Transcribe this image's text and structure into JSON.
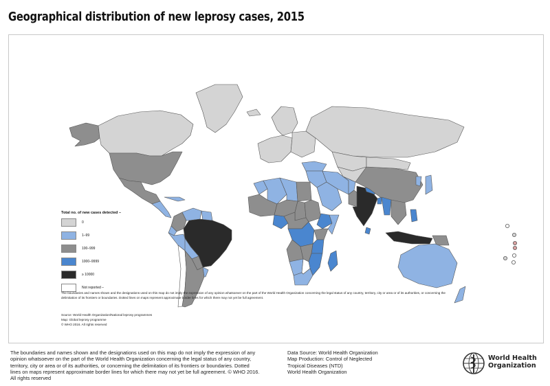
{
  "title": "Geographical distribution of new leprosy cases, 2015",
  "colors": {
    "cat_0": "#d4d4d4",
    "cat_1_99": "#8fb3e3",
    "cat_100_999": "#8e8e8e",
    "cat_1000_9999": "#4a86cf",
    "cat_10000_plus": "#2a2a2a",
    "not_reported": "#ffffff"
  },
  "legend": {
    "title": "Total no. of new cases detected –",
    "items": [
      {
        "label": "0",
        "color_key": "cat_0"
      },
      {
        "label": "1–99",
        "color_key": "cat_1_99"
      },
      {
        "label": "100–999",
        "color_key": "cat_100_999"
      },
      {
        "label": "1000–9999",
        "color_key": "cat_1000_9999"
      },
      {
        "label": "≥ 10000",
        "color_key": "cat_10000_plus"
      },
      {
        "label": "Not reported –",
        "color_key": "not_reported"
      }
    ]
  },
  "map_disclaimer": "The boundaries and names shown and the designations used on this map do not imply the expression of any opinion whatsoever on the part of the World Health Organization concerning the legal status of any country, territory, city or area or of its authorities, or concerning the delimitation of its frontiers or boundaries. Dotted lines on maps represent approximate border lines for which there may not yet be full agreement.",
  "map_source_lines": [
    "Source: World Health Organization/National leprosy programmes",
    "Map: Global leprosy programme",
    "© WHO 2016. All rights reserved"
  ],
  "footer": {
    "disclaimer": "The boundaries and names shown and the designations used on this map do not imply the expression of any opinion whatsoever on the part of the World Health Organization concerning the legal status of any country, territory, city or area or of its authorities, or concerning the delimitation of its frontiers or boundaries. Dotted lines on maps represent approximate border lines for which there may not yet be full agreement. © WHO 2016. All rights reserved",
    "source_lines": [
      "Data Source: World Health Organization",
      "Map Production: Control of Neglected",
      "Tropical Diseases (NTD)",
      "World Health Organization"
    ]
  },
  "logo": {
    "line1": "World Health",
    "line2": "Organization",
    "icon": "who-emblem-icon"
  },
  "regions": [
    {
      "name": "Alaska",
      "cat": "cat_100_999"
    },
    {
      "name": "Canada",
      "cat": "cat_0"
    },
    {
      "name": "Greenland",
      "cat": "cat_0"
    },
    {
      "name": "United States",
      "cat": "cat_100_999"
    },
    {
      "name": "Mexico",
      "cat": "cat_100_999"
    },
    {
      "name": "Central America",
      "cat": "cat_1_99"
    },
    {
      "name": "Caribbean",
      "cat": "cat_1_99"
    },
    {
      "name": "Colombia",
      "cat": "cat_100_999"
    },
    {
      "name": "Venezuela",
      "cat": "cat_1_99"
    },
    {
      "name": "Guianas",
      "cat": "cat_1_99"
    },
    {
      "name": "Brazil",
      "cat": "cat_10000_plus"
    },
    {
      "name": "Ecuador",
      "cat": "cat_1_99"
    },
    {
      "name": "Peru",
      "cat": "cat_1_99"
    },
    {
      "name": "Bolivia",
      "cat": "cat_1_99"
    },
    {
      "name": "Paraguay",
      "cat": "cat_100_999"
    },
    {
      "name": "Chile",
      "cat": "not_reported"
    },
    {
      "name": "Argentina",
      "cat": "cat_100_999"
    },
    {
      "name": "Uruguay",
      "cat": "cat_1_99"
    },
    {
      "name": "Iceland",
      "cat": "cat_0"
    },
    {
      "name": "Scandinavia",
      "cat": "cat_0"
    },
    {
      "name": "Western Europe",
      "cat": "cat_0"
    },
    {
      "name": "Eastern Europe",
      "cat": "cat_0"
    },
    {
      "name": "Russia",
      "cat": "cat_0"
    },
    {
      "name": "Kazakhstan",
      "cat": "cat_0"
    },
    {
      "name": "Central Asia",
      "cat": "cat_0"
    },
    {
      "name": "Turkey",
      "cat": "cat_1_99"
    },
    {
      "name": "Middle East",
      "cat": "cat_1_99"
    },
    {
      "name": "Arabian Peninsula",
      "cat": "cat_1_99"
    },
    {
      "name": "Iran",
      "cat": "cat_1_99"
    },
    {
      "name": "Afghanistan",
      "cat": "cat_1_99"
    },
    {
      "name": "Pakistan",
      "cat": "cat_100_999"
    },
    {
      "name": "India",
      "cat": "cat_10000_plus"
    },
    {
      "name": "Nepal",
      "cat": "cat_1000_9999"
    },
    {
      "name": "Bangladesh",
      "cat": "cat_1000_9999"
    },
    {
      "name": "Sri Lanka",
      "cat": "cat_1000_9999"
    },
    {
      "name": "China",
      "cat": "cat_100_999"
    },
    {
      "name": "Mongolia",
      "cat": "cat_0"
    },
    {
      "name": "Myanmar",
      "cat": "cat_1000_9999"
    },
    {
      "name": "Southeast Asia",
      "cat": "cat_100_999"
    },
    {
      "name": "Japan",
      "cat": "cat_1_99"
    },
    {
      "name": "Korea",
      "cat": "cat_1_99"
    },
    {
      "name": "Philippines",
      "cat": "cat_1000_9999"
    },
    {
      "name": "Indonesia",
      "cat": "cat_10000_plus"
    },
    {
      "name": "Papua New Guinea",
      "cat": "cat_100_999"
    },
    {
      "name": "Australia",
      "cat": "cat_1_99"
    },
    {
      "name": "New Zealand",
      "cat": "cat_1_99"
    },
    {
      "name": "Morocco",
      "cat": "cat_1_99"
    },
    {
      "name": "Algeria",
      "cat": "cat_1_99"
    },
    {
      "name": "Libya",
      "cat": "cat_1_99"
    },
    {
      "name": "Egypt",
      "cat": "cat_100_999"
    },
    {
      "name": "Sahel West",
      "cat": "cat_100_999"
    },
    {
      "name": "Niger",
      "cat": "cat_100_999"
    },
    {
      "name": "Chad",
      "cat": "cat_100_999"
    },
    {
      "name": "Sudan",
      "cat": "cat_100_999"
    },
    {
      "name": "Ethiopia",
      "cat": "cat_1000_9999"
    },
    {
      "name": "Somalia",
      "cat": "cat_1_99"
    },
    {
      "name": "Nigeria",
      "cat": "cat_1000_9999"
    },
    {
      "name": "Central Africa",
      "cat": "cat_100_999"
    },
    {
      "name": "DR Congo",
      "cat": "cat_1000_9999"
    },
    {
      "name": "Kenya",
      "cat": "cat_100_999"
    },
    {
      "name": "Tanzania",
      "cat": "cat_1000_9999"
    },
    {
      "name": "Angola",
      "cat": "cat_100_999"
    },
    {
      "name": "Zambia",
      "cat": "cat_100_999"
    },
    {
      "name": "Mozambique",
      "cat": "cat_1000_9999"
    },
    {
      "name": "Namibia",
      "cat": "cat_1_99"
    },
    {
      "name": "Botswana",
      "cat": "not_reported"
    },
    {
      "name": "South Africa",
      "cat": "cat_1_99"
    },
    {
      "name": "Madagascar",
      "cat": "cat_1000_9999"
    }
  ]
}
